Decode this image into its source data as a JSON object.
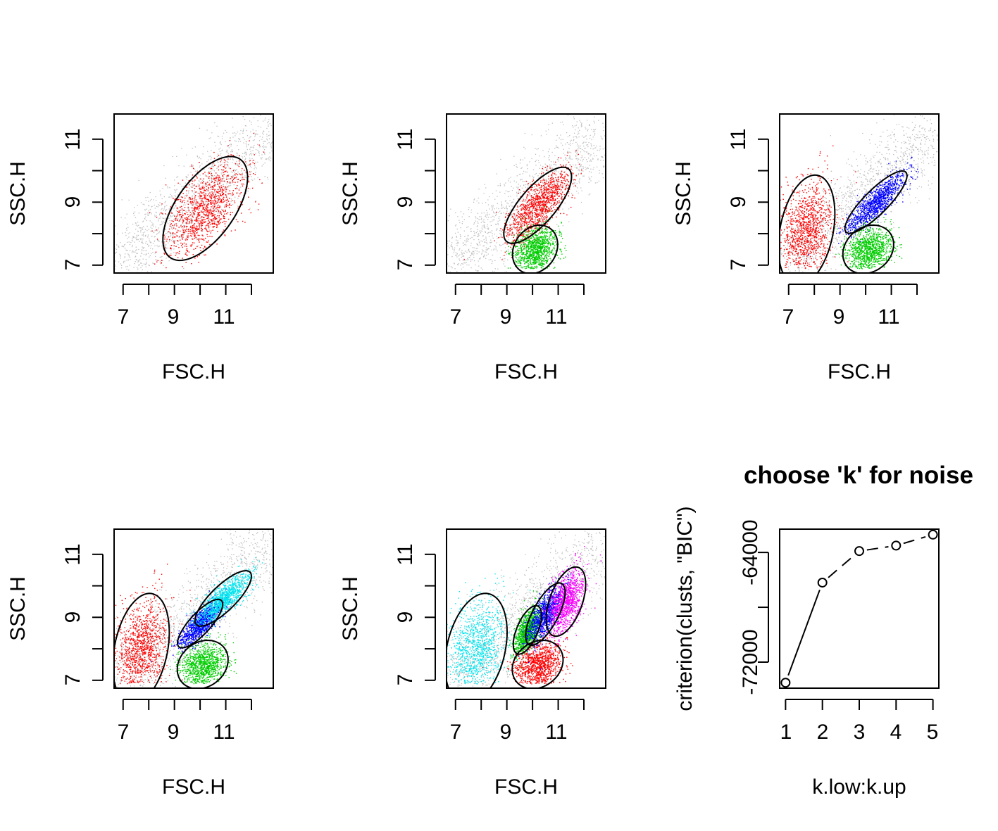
{
  "colors": {
    "noise": "#bebebe",
    "palette": [
      "#ff0000",
      "#00cd00",
      "#0000ff",
      "#00e5ee",
      "#ff00ff"
    ],
    "ellipse": "#000000",
    "background": "#ffffff"
  },
  "panels": [
    {
      "type": "scatter",
      "xlabel": "FSC.H",
      "ylabel": "SSC.H",
      "xticks": [
        "7",
        "9",
        "11"
      ],
      "yticks": [
        "7",
        "9",
        "11"
      ],
      "clusters": [
        {
          "color": "red",
          "center": [
            10.2,
            8.8
          ],
          "spread": [
            0.75,
            0.75
          ],
          "corr": 0.6
        }
      ]
    },
    {
      "type": "scatter",
      "xlabel": "FSC.H",
      "ylabel": "SSC.H",
      "xticks": [
        "7",
        "9",
        "11"
      ],
      "yticks": [
        "7",
        "9",
        "11"
      ],
      "clusters": [
        {
          "color": "red",
          "center": [
            10.2,
            8.9
          ],
          "spread": [
            0.6,
            0.55
          ],
          "corr": 0.75
        },
        {
          "color": "green",
          "center": [
            10.1,
            7.5
          ],
          "spread": [
            0.4,
            0.35
          ],
          "corr": 0.2
        }
      ]
    },
    {
      "type": "scatter",
      "xlabel": "FSC.H",
      "ylabel": "SSC.H",
      "xticks": [
        "7",
        "9",
        "11"
      ],
      "yticks": [
        "7",
        "9",
        "11"
      ],
      "clusters": [
        {
          "color": "red",
          "center": [
            7.7,
            8.1
          ],
          "spread": [
            0.5,
            0.8
          ],
          "corr": 0.3
        },
        {
          "color": "green",
          "center": [
            10.1,
            7.5
          ],
          "spread": [
            0.45,
            0.35
          ],
          "corr": 0.2
        },
        {
          "color": "blue",
          "center": [
            10.4,
            9.0
          ],
          "spread": [
            0.55,
            0.45
          ],
          "corr": 0.85
        }
      ]
    },
    {
      "type": "scatter",
      "xlabel": "FSC.H",
      "ylabel": "SSC.H",
      "xticks": [
        "7",
        "9",
        "11"
      ],
      "yticks": [
        "7",
        "9",
        "11"
      ],
      "clusters": [
        {
          "color": "red",
          "center": [
            7.7,
            8.0
          ],
          "spread": [
            0.5,
            0.8
          ],
          "corr": 0.3
        },
        {
          "color": "green",
          "center": [
            10.1,
            7.5
          ],
          "spread": [
            0.45,
            0.35
          ],
          "corr": 0.2
        },
        {
          "color": "blue",
          "center": [
            10.0,
            8.8
          ],
          "spread": [
            0.4,
            0.35
          ],
          "corr": 0.8
        },
        {
          "color": "cyan",
          "center": [
            10.9,
            9.6
          ],
          "spread": [
            0.5,
            0.4
          ],
          "corr": 0.8
        }
      ]
    },
    {
      "type": "scatter",
      "xlabel": "FSC.H",
      "ylabel": "SSC.H",
      "xticks": [
        "7",
        "9",
        "11"
      ],
      "yticks": [
        "7",
        "9",
        "11"
      ],
      "clusters": [
        {
          "color": "cyan",
          "center": [
            7.8,
            8.0
          ],
          "spread": [
            0.55,
            0.8
          ],
          "corr": 0.3
        },
        {
          "color": "red",
          "center": [
            10.2,
            7.5
          ],
          "spread": [
            0.45,
            0.35
          ],
          "corr": 0.2
        },
        {
          "color": "green",
          "center": [
            9.8,
            8.6
          ],
          "spread": [
            0.25,
            0.35
          ],
          "corr": 0.6
        },
        {
          "color": "blue",
          "center": [
            10.5,
            9.1
          ],
          "spread": [
            0.35,
            0.45
          ],
          "corr": 0.7
        },
        {
          "color": "magenta",
          "center": [
            11.3,
            9.5
          ],
          "spread": [
            0.35,
            0.5
          ],
          "corr": 0.5
        }
      ]
    }
  ],
  "chart_data": {
    "type": "line",
    "title": "choose 'k' for noise",
    "xlabel": "k.low:k.up",
    "ylabel": "criterion(clusts, \"BIC\")",
    "x": [
      1,
      2,
      3,
      4,
      5
    ],
    "y": [
      -73500,
      -66200,
      -63900,
      -63500,
      -62700
    ],
    "xticks": [
      "1",
      "2",
      "3",
      "4",
      "5"
    ],
    "yticks": [
      "-72000",
      "-64000"
    ],
    "ylim": [
      -73500,
      -62700
    ],
    "marker": "open-circle",
    "line_style": "dashed"
  }
}
